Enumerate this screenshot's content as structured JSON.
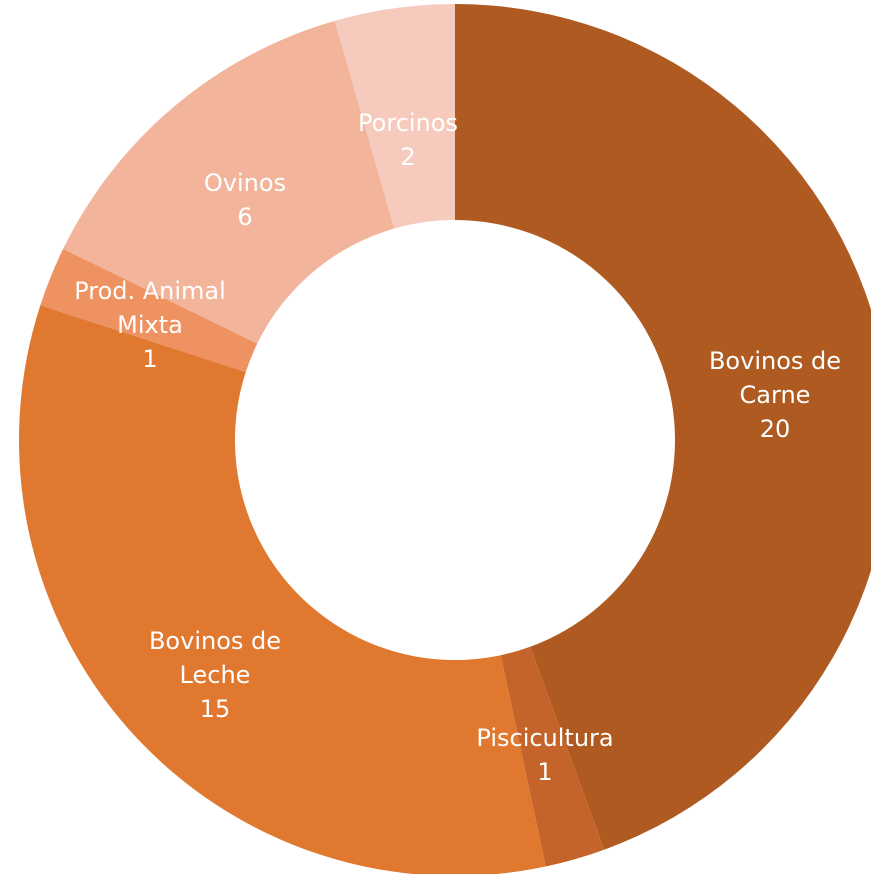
{
  "chart_data": {
    "type": "donut",
    "categories": [
      "Bovinos de Carne",
      "Piscicultura",
      "Bovinos de Leche",
      "Prod. Animal Mixta",
      "Ovinos",
      "Porcinos"
    ],
    "values": [
      20,
      1,
      15,
      1,
      6,
      2
    ],
    "colors": [
      "#ae5a21",
      "#c4642a",
      "#e07830",
      "#ee9262",
      "#f2b49b",
      "#f6cbbe"
    ]
  }
}
